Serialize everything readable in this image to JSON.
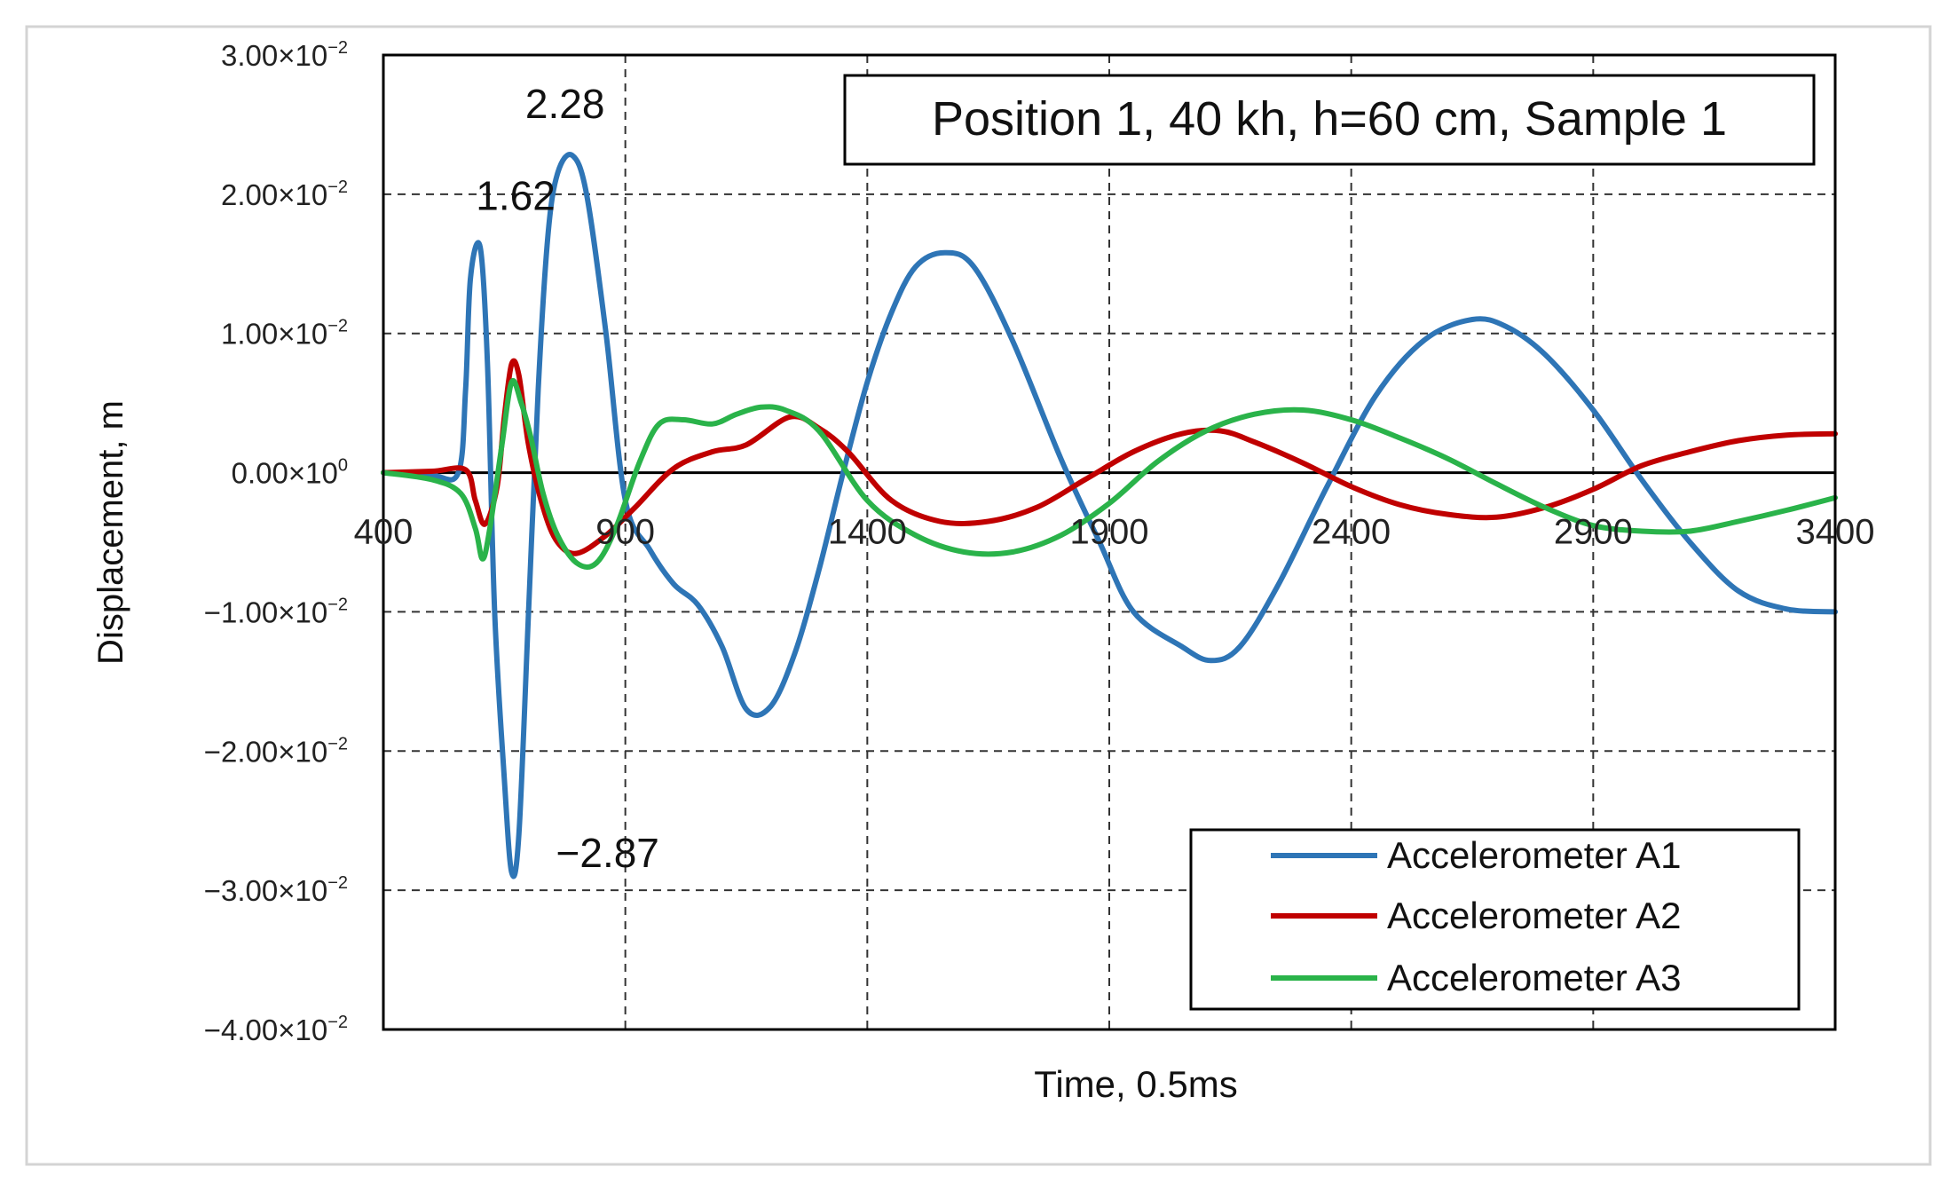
{
  "chart_data": {
    "type": "line",
    "title": "Position 1, 40 kh, h=60 cm, Sample 1",
    "xlabel": "Time, 0.5ms",
    "ylabel": "Displacement, m",
    "xlim": [
      400,
      3400
    ],
    "ylim": [
      -0.04,
      0.03
    ],
    "x_ticks": [
      "400",
      "900",
      "1400",
      "1900",
      "2400",
      "2900",
      "3400"
    ],
    "x_tick_values": [
      400,
      900,
      1400,
      1900,
      2400,
      2900,
      3400
    ],
    "y_ticks": [
      {
        "value": 0.03,
        "mantissa": "3.00×10",
        "exp": "−2"
      },
      {
        "value": 0.02,
        "mantissa": "2.00×10",
        "exp": "−2"
      },
      {
        "value": 0.01,
        "mantissa": "1.00×10",
        "exp": "−2"
      },
      {
        "value": 0.0,
        "mantissa": "0.00×10",
        "exp": "0"
      },
      {
        "value": -0.01,
        "mantissa": "−1.00×10",
        "exp": "−2"
      },
      {
        "value": -0.02,
        "mantissa": "−2.00×10",
        "exp": "−2"
      },
      {
        "value": -0.03,
        "mantissa": "−3.00×10",
        "exp": "−2"
      },
      {
        "value": -0.04,
        "mantissa": "−4.00×10",
        "exp": "−2"
      }
    ],
    "grid": "dashed",
    "legend_position": "bottom-right",
    "series": [
      {
        "name": "Accelerometer A1",
        "color": "#2e75b6",
        "points": [
          [
            400,
            0
          ],
          [
            500,
            -0.0002
          ],
          [
            555,
            0
          ],
          [
            570,
            0.006
          ],
          [
            580,
            0.014
          ],
          [
            600,
            0.0162
          ],
          [
            615,
            0.008
          ],
          [
            630,
            -0.01
          ],
          [
            650,
            -0.022
          ],
          [
            665,
            -0.0287
          ],
          [
            680,
            -0.026
          ],
          [
            700,
            -0.01
          ],
          [
            720,
            0.006
          ],
          [
            740,
            0.017
          ],
          [
            760,
            0.0215
          ],
          [
            790,
            0.0228
          ],
          [
            820,
            0.02
          ],
          [
            860,
            0.01
          ],
          [
            900,
            -0.002
          ],
          [
            950,
            -0.0055
          ],
          [
            1000,
            -0.008
          ],
          [
            1050,
            -0.0095
          ],
          [
            1100,
            -0.0125
          ],
          [
            1150,
            -0.017
          ],
          [
            1200,
            -0.0168
          ],
          [
            1250,
            -0.013
          ],
          [
            1300,
            -0.007
          ],
          [
            1350,
            0
          ],
          [
            1400,
            0.0065
          ],
          [
            1450,
            0.0115
          ],
          [
            1500,
            0.0148
          ],
          [
            1560,
            0.0158
          ],
          [
            1620,
            0.0148
          ],
          [
            1700,
            0.0095
          ],
          [
            1800,
            0.001
          ],
          [
            1880,
            -0.005
          ],
          [
            1950,
            -0.01
          ],
          [
            2050,
            -0.0125
          ],
          [
            2110,
            -0.0135
          ],
          [
            2170,
            -0.0125
          ],
          [
            2250,
            -0.008
          ],
          [
            2350,
            -0.001
          ],
          [
            2450,
            0.0055
          ],
          [
            2550,
            0.0095
          ],
          [
            2650,
            0.011
          ],
          [
            2720,
            0.0105
          ],
          [
            2800,
            0.0085
          ],
          [
            2900,
            0.0045
          ],
          [
            3000,
            -0.0005
          ],
          [
            3100,
            -0.005
          ],
          [
            3200,
            -0.0085
          ],
          [
            3300,
            -0.0098
          ],
          [
            3400,
            -0.01
          ]
        ]
      },
      {
        "name": "Accelerometer A2",
        "color": "#c00000",
        "points": [
          [
            400,
            0
          ],
          [
            500,
            0.0001
          ],
          [
            570,
            0.0002
          ],
          [
            590,
            -0.002
          ],
          [
            610,
            -0.0037
          ],
          [
            635,
            -0.001
          ],
          [
            650,
            0.004
          ],
          [
            665,
            0.0078
          ],
          [
            680,
            0.007
          ],
          [
            700,
            0.002
          ],
          [
            730,
            -0.0025
          ],
          [
            760,
            -0.005
          ],
          [
            800,
            -0.0058
          ],
          [
            860,
            -0.0045
          ],
          [
            920,
            -0.0025
          ],
          [
            1000,
            0.0003
          ],
          [
            1080,
            0.0015
          ],
          [
            1150,
            0.002
          ],
          [
            1240,
            0.004
          ],
          [
            1300,
            0.0032
          ],
          [
            1360,
            0.0015
          ],
          [
            1450,
            -0.002
          ],
          [
            1550,
            -0.0035
          ],
          [
            1650,
            -0.0035
          ],
          [
            1750,
            -0.0025
          ],
          [
            1850,
            -0.0005
          ],
          [
            1950,
            0.0015
          ],
          [
            2050,
            0.0028
          ],
          [
            2130,
            0.003
          ],
          [
            2200,
            0.0022
          ],
          [
            2300,
            0.0007
          ],
          [
            2400,
            -0.001
          ],
          [
            2500,
            -0.0023
          ],
          [
            2600,
            -0.003
          ],
          [
            2700,
            -0.0032
          ],
          [
            2800,
            -0.0025
          ],
          [
            2900,
            -0.0012
          ],
          [
            3000,
            0.0005
          ],
          [
            3100,
            0.0015
          ],
          [
            3200,
            0.0023
          ],
          [
            3300,
            0.0027
          ],
          [
            3400,
            0.0028
          ]
        ]
      },
      {
        "name": "Accelerometer A3",
        "color": "#2ab34a",
        "points": [
          [
            400,
            0
          ],
          [
            500,
            -0.0005
          ],
          [
            560,
            -0.0015
          ],
          [
            590,
            -0.004
          ],
          [
            605,
            -0.0062
          ],
          [
            620,
            -0.004
          ],
          [
            645,
            0.002
          ],
          [
            665,
            0.0065
          ],
          [
            685,
            0.005
          ],
          [
            705,
            0.0025
          ],
          [
            730,
            -0.0015
          ],
          [
            760,
            -0.0045
          ],
          [
            800,
            -0.0065
          ],
          [
            840,
            -0.0065
          ],
          [
            880,
            -0.004
          ],
          [
            930,
            0.0008
          ],
          [
            970,
            0.0035
          ],
          [
            1020,
            0.0038
          ],
          [
            1080,
            0.0035
          ],
          [
            1130,
            0.0042
          ],
          [
            1180,
            0.0047
          ],
          [
            1230,
            0.0045
          ],
          [
            1300,
            0.003
          ],
          [
            1400,
            -0.002
          ],
          [
            1500,
            -0.0045
          ],
          [
            1600,
            -0.0057
          ],
          [
            1700,
            -0.0057
          ],
          [
            1800,
            -0.0045
          ],
          [
            1900,
            -0.0022
          ],
          [
            2000,
            0.0008
          ],
          [
            2100,
            0.003
          ],
          [
            2200,
            0.0042
          ],
          [
            2300,
            0.0045
          ],
          [
            2400,
            0.0038
          ],
          [
            2500,
            0.0025
          ],
          [
            2600,
            0.001
          ],
          [
            2700,
            -0.0008
          ],
          [
            2800,
            -0.0025
          ],
          [
            2900,
            -0.0038
          ],
          [
            3000,
            -0.0042
          ],
          [
            3100,
            -0.0042
          ],
          [
            3200,
            -0.0035
          ],
          [
            3300,
            -0.0027
          ],
          [
            3400,
            -0.0018
          ]
        ]
      }
    ],
    "annotations": [
      {
        "text": "1.62",
        "x": 600,
        "y": 0.0162
      },
      {
        "text": "2.28",
        "x": 790,
        "y": 0.0228
      },
      {
        "text": "−2.87",
        "x": 665,
        "y": -0.0287
      }
    ]
  }
}
